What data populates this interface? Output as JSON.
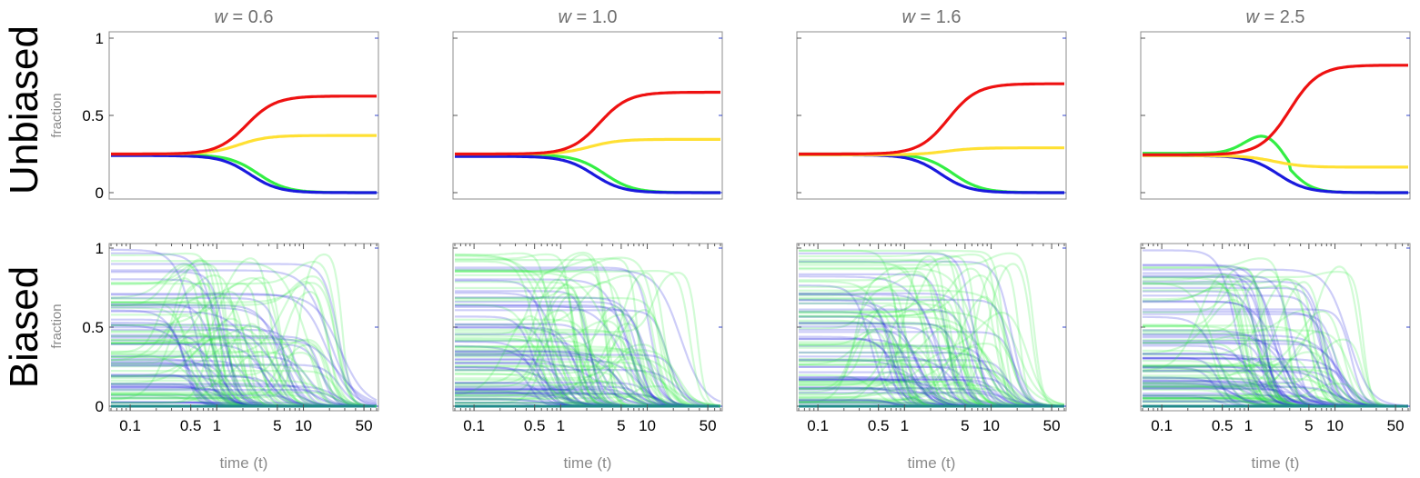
{
  "chart_data": {
    "type": "line",
    "layout": "2x4 grid of panels",
    "column_titles": [
      {
        "var": "w",
        "eq": " = 0.6",
        "w": 0.6
      },
      {
        "var": "w",
        "eq": " = 1.0",
        "w": 1.0
      },
      {
        "var": "w",
        "eq": " = 1.6",
        "w": 1.6
      },
      {
        "var": "w",
        "eq": " = 2.5",
        "w": 2.5
      }
    ],
    "row_labels": [
      "Unbiased",
      "Biased"
    ],
    "ylabel": "fraction",
    "xlabel": "time (t)",
    "xscale": "log",
    "xlim": [
      0.06,
      70
    ],
    "ylim": [
      0,
      1
    ],
    "xticks": [
      {
        "value": 0.1,
        "label": "0.1"
      },
      {
        "value": 0.5,
        "label": "0.5"
      },
      {
        "value": 1,
        "label": "1"
      },
      {
        "value": 5,
        "label": "5"
      },
      {
        "value": 10,
        "label": "10"
      },
      {
        "value": 50,
        "label": "50"
      }
    ],
    "yticks_top": [
      {
        "value": 0,
        "label": "0"
      },
      {
        "value": 0.5,
        "label": "0.5"
      },
      {
        "value": 1,
        "label": "1"
      }
    ],
    "yticks_bottom": [
      {
        "value": 0,
        "label": "0"
      },
      {
        "value": 0.5,
        "label": "0.5"
      },
      {
        "value": 1,
        "label": "1"
      }
    ],
    "colors": {
      "red": "#ee1111",
      "yellow": "#ffe033",
      "green": "#33ee44",
      "blue": "#1a1add"
    },
    "unbiased_panels": [
      {
        "w": 0.6,
        "series": [
          {
            "name": "red",
            "initial": 0.25,
            "final": 0.625,
            "t_mid": 2.2
          },
          {
            "name": "yellow",
            "initial": 0.25,
            "final": 0.37,
            "t_mid": 1.8
          },
          {
            "name": "green",
            "initial": 0.245,
            "final": 0.0,
            "t_mid": 3.0
          },
          {
            "name": "blue",
            "initial": 0.24,
            "final": 0.0,
            "t_mid": 2.4
          }
        ]
      },
      {
        "w": 1.0,
        "series": [
          {
            "name": "red",
            "initial": 0.25,
            "final": 0.65,
            "t_mid": 2.8
          },
          {
            "name": "yellow",
            "initial": 0.25,
            "final": 0.345,
            "t_mid": 2.2
          },
          {
            "name": "green",
            "initial": 0.245,
            "final": 0.0,
            "t_mid": 3.2
          },
          {
            "name": "blue",
            "initial": 0.235,
            "final": 0.0,
            "t_mid": 2.4
          }
        ]
      },
      {
        "w": 1.6,
        "series": [
          {
            "name": "red",
            "initial": 0.25,
            "final": 0.705,
            "t_mid": 3.2
          },
          {
            "name": "yellow",
            "initial": 0.245,
            "final": 0.29,
            "t_mid": 3.0
          },
          {
            "name": "green",
            "initial": 0.25,
            "final": 0.0,
            "t_mid": 3.6
          },
          {
            "name": "blue",
            "initial": 0.245,
            "final": 0.0,
            "t_mid": 2.6
          }
        ]
      },
      {
        "w": 2.5,
        "series": [
          {
            "name": "red",
            "initial": 0.245,
            "final": 0.825,
            "t_mid": 3.0
          },
          {
            "name": "yellow",
            "initial": 0.24,
            "final": 0.165,
            "t_mid": 2.0
          },
          {
            "name": "green",
            "initial": 0.255,
            "final": 0.0,
            "t_mid": 3.0,
            "peak": 0.39,
            "t_peak": 1.6
          },
          {
            "name": "blue",
            "initial": 0.24,
            "final": 0.0,
            "t_mid": 2.2
          }
        ]
      }
    ],
    "biased_panels": [
      {
        "w": 0.6,
        "n_trajectories": 110,
        "series_colors": [
          "blue",
          "green"
        ],
        "final": 0.0,
        "max_t_mid": 30
      },
      {
        "w": 1.0,
        "n_trajectories": 110,
        "series_colors": [
          "blue",
          "green"
        ],
        "final": 0.0,
        "max_t_mid": 25
      },
      {
        "w": 1.6,
        "n_trajectories": 110,
        "series_colors": [
          "blue",
          "green"
        ],
        "final": 0.0,
        "max_t_mid": 20
      },
      {
        "w": 2.5,
        "n_trajectories": 110,
        "series_colors": [
          "blue",
          "green"
        ],
        "final": 0.0,
        "max_t_mid": 16
      }
    ]
  }
}
